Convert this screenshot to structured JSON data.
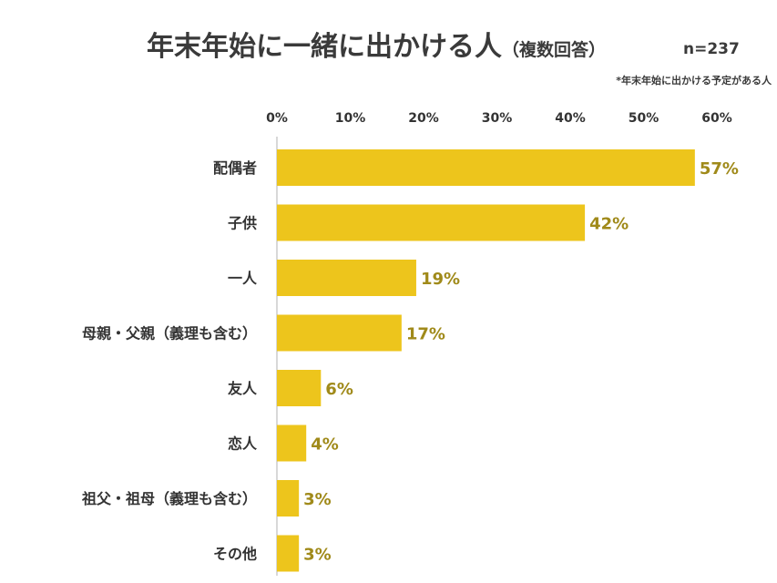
{
  "header": {
    "title": "年末年始に一緒に出かける人",
    "subtitle": "（複数回答）",
    "n": "n=237",
    "note": "*年末年始に出かける予定がある人"
  },
  "chart_data": {
    "type": "bar",
    "orientation": "horizontal",
    "title": "年末年始に一緒に出かける人（複数回答）",
    "categories": [
      "配偶者",
      "子供",
      "一人",
      "母親・父親（義理も含む）",
      "友人",
      "恋人",
      "祖父・祖母（義理も含む）",
      "その他"
    ],
    "values": [
      57,
      42,
      19,
      17,
      6,
      4,
      3,
      3
    ],
    "value_labels": [
      "57%",
      "42%",
      "19%",
      "17%",
      "6%",
      "4%",
      "3%",
      "3%"
    ],
    "x_ticks": [
      "0%",
      "10%",
      "20%",
      "30%",
      "40%",
      "50%",
      "60%"
    ],
    "xlim": [
      0,
      60
    ],
    "xlabel": "",
    "ylabel": "",
    "axis_position": "top",
    "grid": false,
    "legend": "none",
    "colors": {
      "bar": "#EDC51C",
      "value_label": "#A08A1A",
      "text": "#333333",
      "axis": "#CCCCCC"
    }
  }
}
